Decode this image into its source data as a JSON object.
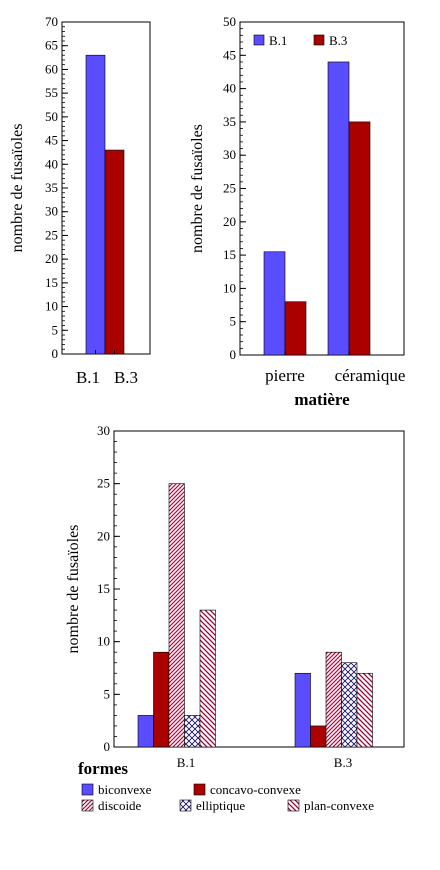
{
  "colors": {
    "blue": "#5a4cff",
    "darkred": "#aa0000",
    "pattern_line": "#990033"
  },
  "chart_data": [
    {
      "type": "bar",
      "categories": [
        "B.1",
        "B.3"
      ],
      "values": [
        63,
        43
      ],
      "ylabel": "nombre de fusaïoles",
      "ylim": [
        0,
        70
      ],
      "yticks": [
        0,
        5,
        10,
        15,
        20,
        25,
        30,
        35,
        40,
        45,
        50,
        55,
        60,
        65,
        70
      ],
      "grid": false
    },
    {
      "type": "bar",
      "categories": [
        "pierre",
        "céramique"
      ],
      "series": [
        {
          "name": "B.1",
          "values": [
            15.5,
            44
          ]
        },
        {
          "name": "B.3",
          "values": [
            8,
            35
          ]
        }
      ],
      "xlabel": "matière",
      "ylabel": "nombre de fusaïoles",
      "ylim": [
        0,
        50
      ],
      "yticks": [
        0,
        5,
        10,
        15,
        20,
        25,
        30,
        35,
        40,
        45,
        50
      ],
      "legend": "top-left",
      "grid": false
    },
    {
      "type": "bar",
      "categories": [
        "B.1",
        "B.3"
      ],
      "series": [
        {
          "name": "biconvexe",
          "values": [
            3,
            7
          ]
        },
        {
          "name": "concavo-convexe",
          "values": [
            9,
            2
          ]
        },
        {
          "name": "discoide",
          "values": [
            25,
            9
          ]
        },
        {
          "name": "elliptique",
          "values": [
            3,
            8
          ]
        },
        {
          "name": "plan-convexe",
          "values": [
            13,
            7
          ]
        }
      ],
      "legend_title": "formes",
      "ylabel": "nombre de fusaïoles",
      "ylim": [
        0,
        30
      ],
      "yticks": [
        0,
        5,
        10,
        15,
        20,
        25,
        30
      ],
      "legend": "bottom",
      "grid": false
    }
  ]
}
